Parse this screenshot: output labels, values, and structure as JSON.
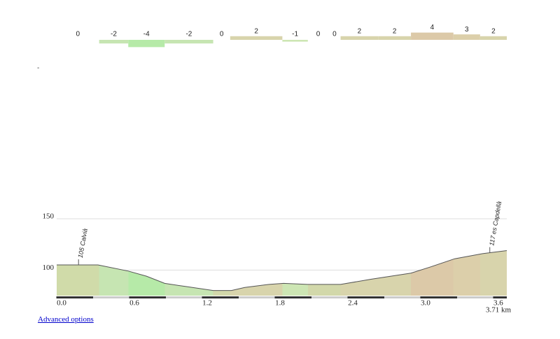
{
  "chart_data": {
    "type": "elevation-profile",
    "x": [
      0,
      0.34,
      0.59,
      0.74,
      0.89,
      1.06,
      1.29,
      1.44,
      1.55,
      1.75,
      1.87,
      2.07,
      2.34,
      2.59,
      2.92,
      3.08,
      3.28,
      3.51,
      3.71
    ],
    "values": [
      105,
      105,
      99,
      94,
      87,
      84,
      80,
      80,
      83,
      86,
      87,
      86,
      86,
      91,
      97,
      103,
      111,
      116,
      119
    ],
    "xlim": [
      0,
      3.71
    ],
    "ylim": [
      75,
      150
    ],
    "xticks": [
      {
        "value": 0,
        "label": "0.0"
      },
      0.6,
      1.2,
      1.8,
      2.4,
      {
        "value": 3,
        "label": "3.0"
      },
      3.6
    ],
    "yticks": [
      100,
      150
    ],
    "grid": true,
    "x_end_label": "3.71 km",
    "gradient": {
      "bins": [
        0,
        0.35,
        0.59,
        0.89,
        1.29,
        1.43,
        1.86,
        2.07,
        2.24,
        2.34,
        2.65,
        2.92,
        3.27,
        3.49,
        3.71
      ],
      "values": [
        0,
        -2,
        -4,
        -2,
        0,
        2,
        -1,
        0,
        0,
        2,
        2,
        4,
        3,
        2
      ],
      "colors": [
        "#d0dba9",
        "#c6e5b2",
        "#b6eaa8",
        "#c6e5b2",
        "#d2d8aa",
        "#d8d4ac",
        "#cde6b4",
        "#d2d8aa",
        "#d2d8aa",
        "#d8d4ac",
        "#d8d4ac",
        "#dcc9a8",
        "#dccfaa",
        "#d8d4ac"
      ]
    },
    "annotations": [
      {
        "text": "105 Calvià",
        "x": 0.18
      },
      {
        "text": "117 es Capdellà",
        "x": 3.57
      }
    ]
  },
  "note": "-",
  "link": "Advanced options"
}
